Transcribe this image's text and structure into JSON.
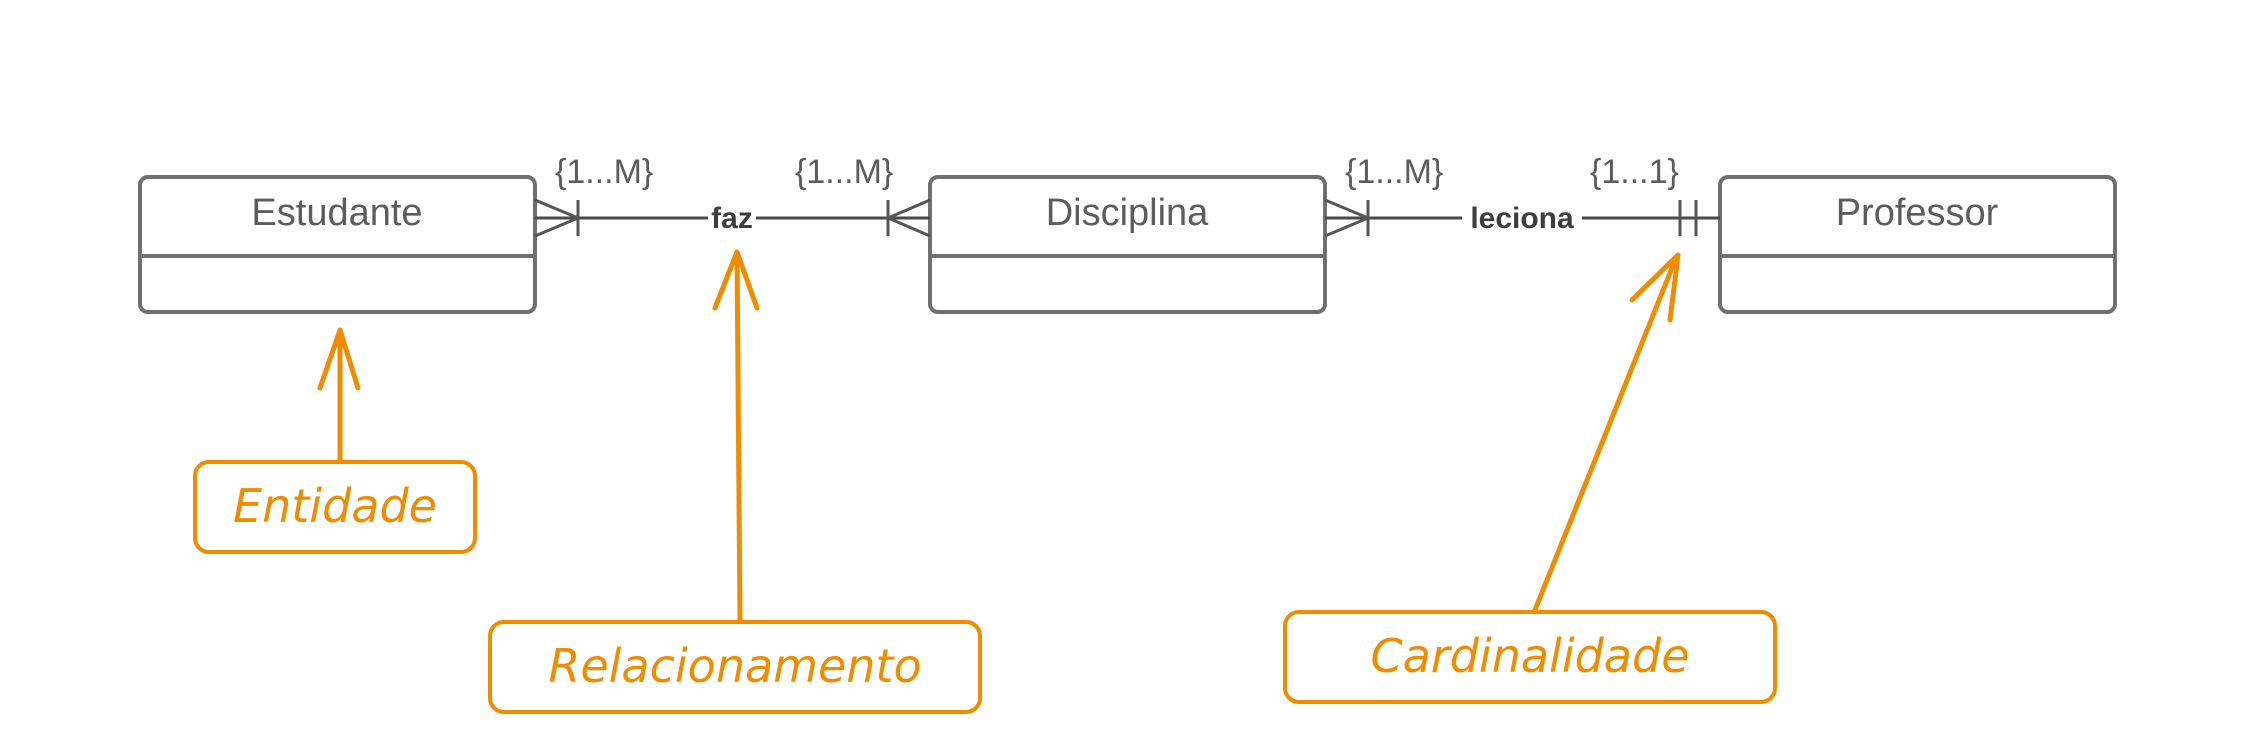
{
  "entities": [
    {
      "name": "Estudante"
    },
    {
      "name": "Disciplina"
    },
    {
      "name": "Professor"
    }
  ],
  "relationships": [
    {
      "label": "faz",
      "from": "Estudante",
      "to": "Disciplina",
      "from_cardinality": "{1...M}",
      "to_cardinality": "{1...M}"
    },
    {
      "label": "leciona",
      "from": "Disciplina",
      "to": "Professor",
      "from_cardinality": "{1...M}",
      "to_cardinality": "{1...1}"
    }
  ],
  "annotations": {
    "entidade": "Entidade",
    "relacionamento": "Relacionamento",
    "cardinalidade": "Cardinalidade"
  },
  "colors": {
    "annotation": "#f08c00",
    "entity_border": "#6f6f6f",
    "text": "#5c5c5c"
  }
}
